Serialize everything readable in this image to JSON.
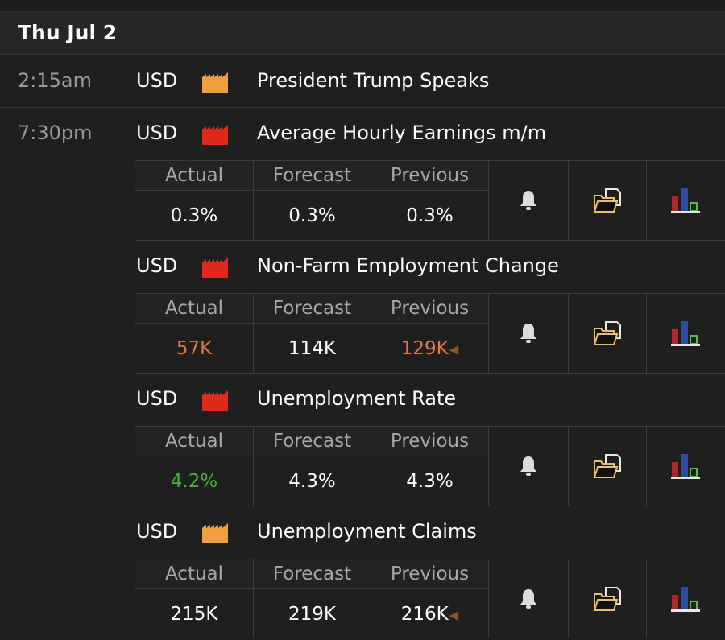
{
  "date_header": "Thu Jul 2",
  "table": {
    "actual_label": "Actual",
    "forecast_label": "Forecast",
    "previous_label": "Previous"
  },
  "colors": {
    "impact_high": "#e0281c",
    "impact_medium": "#f0a03a",
    "better": "#4cae38",
    "worse": "#e2774a",
    "revised": "#8a5b20"
  },
  "icons": {
    "alert": "bell-icon",
    "details": "folder-icon",
    "chart": "bar-chart-icon",
    "revised": "revised-arrow-icon"
  },
  "events": [
    {
      "time": "2:15am",
      "currency": "USD",
      "impact": "medium",
      "title": "President Trump Speaks"
    },
    {
      "time": "7:30pm",
      "currency": "USD",
      "impact": "high",
      "title": "Average Hourly Earnings m/m",
      "actual": "0.3%",
      "forecast": "0.3%",
      "previous": "0.3%"
    },
    {
      "time": "",
      "currency": "USD",
      "impact": "high",
      "title": "Non-Farm Employment Change",
      "actual": "57K",
      "forecast": "114K",
      "previous": "129K"
    },
    {
      "time": "",
      "currency": "USD",
      "impact": "high",
      "title": "Unemployment Rate",
      "actual": "4.2%",
      "forecast": "4.3%",
      "previous": "4.3%"
    },
    {
      "time": "",
      "currency": "USD",
      "impact": "medium",
      "title": "Unemployment Claims",
      "actual": "215K",
      "forecast": "219K",
      "previous": "216K"
    }
  ]
}
